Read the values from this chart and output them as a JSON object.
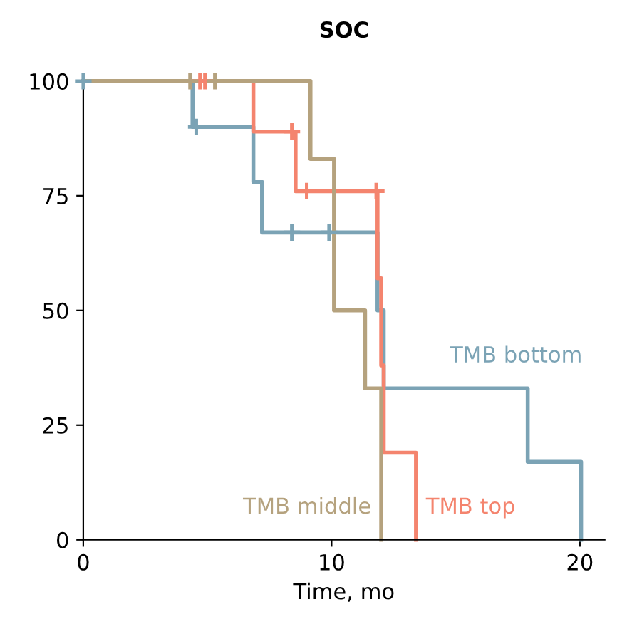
{
  "chart_data": {
    "type": "step",
    "title": "SOC",
    "xlabel": "Time, mo",
    "xlim": [
      0,
      21
    ],
    "ylim": [
      0,
      100
    ],
    "xticks": [
      0,
      10,
      20
    ],
    "yticks": [
      0,
      25,
      50,
      75,
      100
    ],
    "grid": false,
    "legend": false,
    "line_style": "solid",
    "series": [
      {
        "name": "TMB bottom",
        "color": "#7ba3b5",
        "x": [
          0,
          4.4,
          6.85,
          7.2,
          11.85,
          12.1,
          17.9,
          20.05
        ],
        "values": [
          100,
          90,
          78,
          67,
          50,
          33,
          17,
          0
        ]
      },
      {
        "name": "TMB top",
        "color": "#f4846e",
        "x": [
          0,
          6.85,
          8.55,
          11.85,
          12.0,
          12.1,
          13.4
        ],
        "values": [
          100,
          89,
          76,
          57,
          38,
          19,
          0
        ]
      },
      {
        "name": "TMB middle",
        "color": "#b5a27e",
        "x": [
          0,
          9.15,
          10.1,
          11.35,
          12.0
        ],
        "values": [
          100,
          83,
          50,
          33,
          0
        ]
      },
      {
        "type": "scatter",
        "marker": "cross",
        "color": "#7ba3b5",
        "x": [
          0,
          4.55,
          8.4,
          9.9
        ],
        "values": [
          100,
          90,
          67,
          67
        ]
      },
      {
        "type": "scatter",
        "marker": "cross",
        "color": "#f4846e",
        "x": [
          4.7,
          4.9,
          8.4,
          9.0,
          11.8
        ],
        "values": [
          100,
          100,
          89,
          76,
          76
        ]
      },
      {
        "type": "scatter",
        "marker": "cross",
        "color": "#b5a27e",
        "x": [
          4.3,
          5.3
        ],
        "values": [
          100,
          100
        ]
      }
    ]
  }
}
